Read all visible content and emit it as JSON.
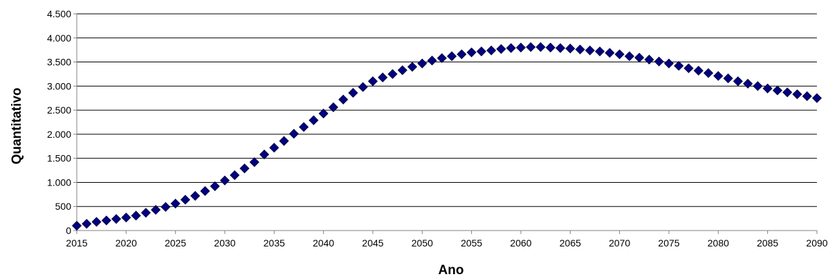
{
  "chart_data": {
    "type": "scatter",
    "xlabel": "Ano",
    "ylabel": "Quantitativo",
    "xlim": [
      2015,
      2090
    ],
    "ylim": [
      0,
      4500
    ],
    "xticks": [
      2015,
      2020,
      2025,
      2030,
      2035,
      2040,
      2045,
      2050,
      2055,
      2060,
      2065,
      2070,
      2075,
      2080,
      2085,
      2090
    ],
    "xtick_labels": [
      "2015",
      "2020",
      "2025",
      "2030",
      "2035",
      "2040",
      "2045",
      "2050",
      "2055",
      "2060",
      "2065",
      "2070",
      "2075",
      "2080",
      "2085",
      "2090"
    ],
    "yticks": [
      0,
      500,
      1000,
      1500,
      2000,
      2500,
      3000,
      3500,
      4000,
      4500
    ],
    "ytick_labels": [
      "0",
      "500",
      "1.000",
      "1.500",
      "2.000",
      "2.500",
      "3.000",
      "3.500",
      "4.000",
      "4.500"
    ],
    "grid": "horizontal",
    "marker": "diamond",
    "colors": {
      "marker_fill": "#000080",
      "marker_stroke": "#000033",
      "grid": "#000000",
      "axis": "#808080"
    },
    "series": [
      {
        "x": [
          2015,
          2016,
          2017,
          2018,
          2019,
          2020,
          2021,
          2022,
          2023,
          2024,
          2025,
          2026,
          2027,
          2028,
          2029,
          2030,
          2031,
          2032,
          2033,
          2034,
          2035,
          2036,
          2037,
          2038,
          2039,
          2040,
          2041,
          2042,
          2043,
          2044,
          2045,
          2046,
          2047,
          2048,
          2049,
          2050,
          2051,
          2052,
          2053,
          2054,
          2055,
          2056,
          2057,
          2058,
          2059,
          2060,
          2061,
          2062,
          2063,
          2064,
          2065,
          2066,
          2067,
          2068,
          2069,
          2070,
          2071,
          2072,
          2073,
          2074,
          2075,
          2076,
          2077,
          2078,
          2079,
          2080,
          2081,
          2082,
          2083,
          2084,
          2085,
          2086,
          2087,
          2088,
          2089,
          2090
        ],
        "y": [
          100,
          140,
          180,
          210,
          240,
          270,
          310,
          370,
          430,
          490,
          560,
          640,
          720,
          820,
          920,
          1040,
          1150,
          1290,
          1420,
          1580,
          1720,
          1860,
          2010,
          2150,
          2290,
          2430,
          2560,
          2720,
          2860,
          2980,
          3100,
          3180,
          3250,
          3330,
          3400,
          3470,
          3530,
          3580,
          3620,
          3660,
          3700,
          3720,
          3740,
          3770,
          3790,
          3800,
          3810,
          3810,
          3800,
          3790,
          3780,
          3760,
          3740,
          3720,
          3690,
          3660,
          3620,
          3590,
          3550,
          3510,
          3470,
          3420,
          3370,
          3320,
          3270,
          3210,
          3160,
          3100,
          3050,
          3000,
          2950,
          2910,
          2870,
          2830,
          2790,
          2750
        ]
      }
    ]
  }
}
